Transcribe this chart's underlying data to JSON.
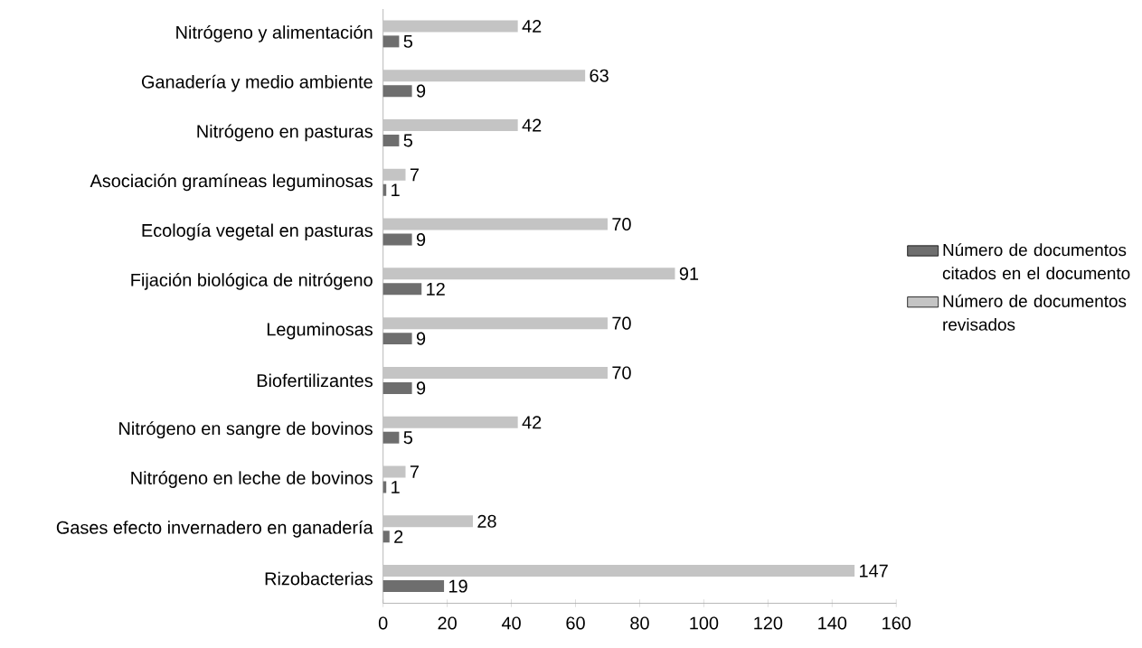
{
  "chart_data": {
    "type": "bar",
    "orientation": "horizontal",
    "categories": [
      "Nitrógeno y alimentación",
      "Ganadería y medio ambiente",
      "Nitrógeno en pasturas",
      "Asociación gramíneas leguminosas",
      "Ecología vegetal en pasturas",
      "Fijación biológica de nitrógeno",
      "Leguminosas",
      "Biofertilizantes",
      "Nitrógeno en sangre de bovinos",
      "Nitrógeno en leche de bovinos",
      "Gases efecto invernadero en ganadería",
      "Rizobacterias"
    ],
    "series": [
      {
        "name": "Número de documentos citados en el documento",
        "color": "#6e6e6e",
        "values": [
          5,
          9,
          5,
          1,
          9,
          12,
          9,
          9,
          5,
          1,
          2,
          19
        ]
      },
      {
        "name": "Número de documentos revisados",
        "color": "#c4c4c4",
        "values": [
          42,
          63,
          42,
          7,
          70,
          91,
          70,
          70,
          42,
          7,
          28,
          147
        ]
      }
    ],
    "xlim": [
      0,
      160
    ],
    "xticks": [
      0,
      20,
      40,
      60,
      80,
      100,
      120,
      140,
      160
    ],
    "data_labels": true,
    "legend": "right",
    "grid": false
  }
}
